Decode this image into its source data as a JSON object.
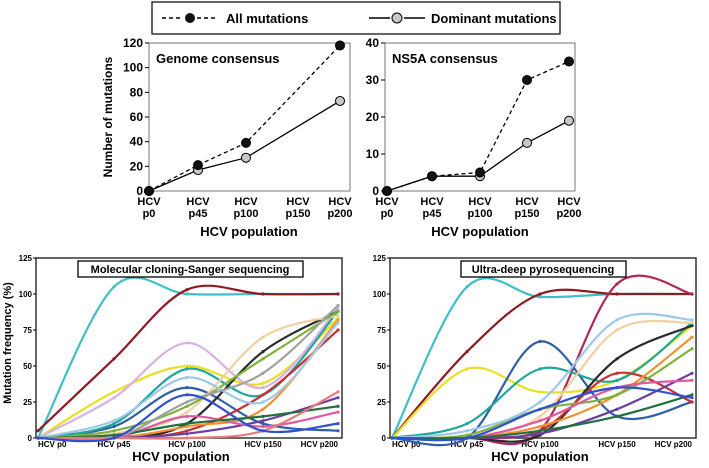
{
  "legend": {
    "all_label": "All mutations",
    "dominant_label": "Dominant mutations"
  },
  "colors": {
    "all": "#111111",
    "dominant_fill": "#c8c8c8",
    "axis": "#000000",
    "panel_border": "#777777",
    "bottom_frame": "#333333"
  },
  "chart_data": [
    {
      "id": "genome",
      "type": "line",
      "title": "Genome consensus",
      "xlabel": "HCV population",
      "ylabel": "Number of mutations",
      "categories": [
        "HCV p0",
        "HCV p45",
        "HCV p100",
        "HCV p150",
        "HCV p200"
      ],
      "category_lines": [
        [
          "HCV",
          "p0"
        ],
        [
          "HCV",
          "p45"
        ],
        [
          "HCV",
          "p100"
        ],
        [
          "HCV",
          "p150"
        ],
        [
          "HCV",
          "p200"
        ]
      ],
      "ylim": [
        0,
        120
      ],
      "yticks": [
        "0",
        "20",
        "40",
        "60",
        "80",
        "100",
        "120"
      ],
      "series": [
        {
          "name": "All mutations",
          "values": [
            0,
            21,
            39,
            null,
            118
          ]
        },
        {
          "name": "Dominant mutations",
          "values": [
            0,
            17,
            27,
            null,
            73
          ]
        }
      ]
    },
    {
      "id": "ns5a",
      "type": "line",
      "title": "NS5A consensus",
      "xlabel": "HCV population",
      "ylabel": "",
      "categories": [
        "HCV p0",
        "HCV p45",
        "HCV p100",
        "HCV p150",
        "HCV p200"
      ],
      "category_lines": [
        [
          "HCV",
          "p0"
        ],
        [
          "HCV",
          "p45"
        ],
        [
          "HCV",
          "p100"
        ],
        [
          "HCV",
          "p150"
        ],
        [
          "HCV",
          "p200"
        ]
      ],
      "ylim": [
        0,
        40
      ],
      "yticks": [
        "0",
        "10",
        "20",
        "30",
        "40"
      ],
      "series": [
        {
          "name": "All mutations",
          "values": [
            0,
            4,
            5,
            30,
            35
          ]
        },
        {
          "name": "Dominant mutations",
          "values": [
            0,
            4,
            4,
            13,
            19
          ]
        }
      ]
    },
    {
      "id": "sanger",
      "type": "line",
      "title": "Molecular cloning-Sanger sequencing",
      "xlabel": "HCV population",
      "ylabel": "Mutation frequency (%)",
      "categories": [
        "HCV p0",
        "HCV p45",
        "HCV p100",
        "HCV p150",
        "HCV p200"
      ],
      "ylim": [
        0,
        125
      ],
      "yticks": [
        "0",
        "25",
        "50",
        "75",
        "100",
        "125"
      ],
      "series": [
        {
          "color": "#3fbfc6",
          "values": [
            0,
            105,
            100,
            100,
            100
          ]
        },
        {
          "color": "#8e1b22",
          "values": [
            5,
            55,
            103,
            100,
            100
          ]
        },
        {
          "color": "#e8e020",
          "values": [
            0,
            32,
            50,
            38,
            83
          ]
        },
        {
          "color": "#d8b0e8",
          "values": [
            0,
            28,
            66,
            35,
            90
          ]
        },
        {
          "color": "#2e5fa8",
          "values": [
            0,
            8,
            35,
            10,
            5
          ]
        },
        {
          "color": "#1fa89a",
          "values": [
            0,
            10,
            48,
            30,
            88
          ]
        },
        {
          "color": "#2b2b2b",
          "values": [
            0,
            0,
            10,
            60,
            88
          ]
        },
        {
          "color": "#f0d0a0",
          "values": [
            0,
            3,
            18,
            70,
            85
          ]
        },
        {
          "color": "#c93030",
          "values": [
            0,
            0,
            5,
            30,
            75
          ]
        },
        {
          "color": "#f29030",
          "values": [
            0,
            0,
            8,
            20,
            82
          ]
        },
        {
          "color": "#7db33a",
          "values": [
            0,
            5,
            22,
            55,
            88
          ]
        },
        {
          "color": "#9ec8e8",
          "values": [
            0,
            12,
            42,
            25,
            80
          ]
        },
        {
          "color": "#6b3fa0",
          "values": [
            0,
            0,
            3,
            12,
            28
          ]
        },
        {
          "color": "#e05aa0",
          "values": [
            0,
            0,
            15,
            8,
            18
          ]
        },
        {
          "color": "#207040",
          "values": [
            0,
            2,
            10,
            15,
            22
          ]
        },
        {
          "color": "#a0a0a0",
          "values": [
            0,
            0,
            25,
            45,
            92
          ]
        },
        {
          "color": "#e87a7a",
          "values": [
            0,
            0,
            0,
            5,
            32
          ]
        },
        {
          "color": "#3050d0",
          "values": [
            0,
            0,
            30,
            5,
            10
          ]
        }
      ]
    },
    {
      "id": "udps",
      "type": "line",
      "title": "Ultra-deep pyrosequencing",
      "xlabel": "HCV population",
      "ylabel": "",
      "categories": [
        "HCV p0",
        "HCV p45",
        "HCV p100",
        "HCV p150",
        "HCV p200"
      ],
      "ylim": [
        0,
        125
      ],
      "yticks": [
        "0",
        "25",
        "50",
        "75",
        "100",
        "125"
      ],
      "series": [
        {
          "color": "#3fbfc6",
          "values": [
            0,
            105,
            98,
            100,
            100
          ]
        },
        {
          "color": "#8e1b22",
          "values": [
            0,
            60,
            100,
            100,
            100
          ]
        },
        {
          "color": "#b0285a",
          "values": [
            0,
            0,
            5,
            107,
            100
          ]
        },
        {
          "color": "#e8e020",
          "values": [
            0,
            48,
            32,
            40,
            78
          ]
        },
        {
          "color": "#2e5fa8",
          "values": [
            0,
            0,
            67,
            15,
            25
          ]
        },
        {
          "color": "#1fa89a",
          "values": [
            0,
            10,
            48,
            40,
            80
          ]
        },
        {
          "color": "#2b2b2b",
          "values": [
            0,
            0,
            2,
            55,
            78
          ]
        },
        {
          "color": "#f0d0a0",
          "values": [
            0,
            0,
            15,
            75,
            80
          ]
        },
        {
          "color": "#c93030",
          "values": [
            0,
            0,
            5,
            45,
            25
          ]
        },
        {
          "color": "#f29030",
          "values": [
            0,
            0,
            8,
            30,
            70
          ]
        },
        {
          "color": "#7db33a",
          "values": [
            0,
            2,
            20,
            30,
            62
          ]
        },
        {
          "color": "#9ec8e8",
          "values": [
            0,
            5,
            25,
            82,
            82
          ]
        },
        {
          "color": "#6b3fa0",
          "values": [
            0,
            0,
            3,
            20,
            45
          ]
        },
        {
          "color": "#e05aa0",
          "values": [
            0,
            0,
            12,
            35,
            40
          ]
        },
        {
          "color": "#207040",
          "values": [
            0,
            0,
            5,
            15,
            30
          ]
        },
        {
          "color": "#3050d0",
          "values": [
            0,
            0,
            20,
            35,
            28
          ]
        }
      ]
    }
  ]
}
